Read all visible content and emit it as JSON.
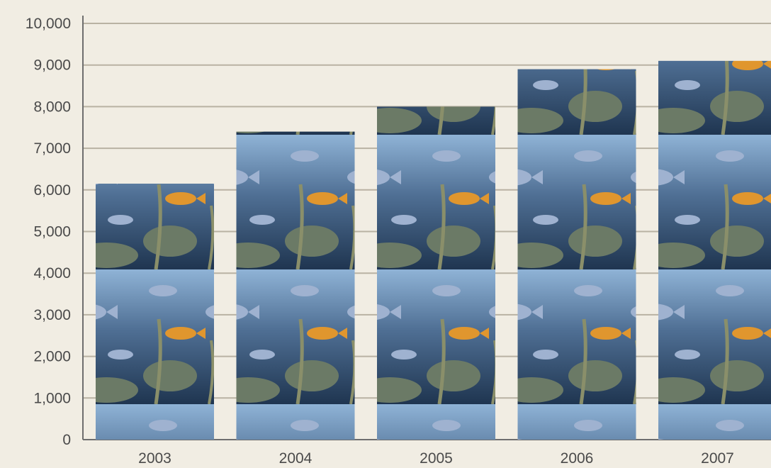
{
  "chart_data": {
    "type": "bar",
    "title": "",
    "xlabel": "",
    "ylabel": "",
    "categories": [
      "2003",
      "2004",
      "2005",
      "2006",
      "2007"
    ],
    "values": [
      6150,
      7400,
      8000,
      8900,
      9100
    ],
    "ylim": [
      0,
      10000
    ],
    "yticks": [
      "0",
      "1,000",
      "2,000",
      "3,000",
      "4,000",
      "5,000",
      "6,000",
      "7,000",
      "8,000",
      "9,000",
      "10,000"
    ],
    "grid": true,
    "bar_fill": "underwater aquarium photo (fish and plants)",
    "colors": {
      "background": "#f1ede3",
      "grid": "#b9b2a3",
      "axis": "#6e6e6e",
      "water_dark": "#1f3550",
      "water_mid": "#4f6f94",
      "water_light": "#8fb3d6",
      "fish_blue": "#9fb2d0",
      "fish_orange": "#e0962e",
      "rock": "#6b7a66",
      "plant": "#8a8f6a"
    }
  }
}
